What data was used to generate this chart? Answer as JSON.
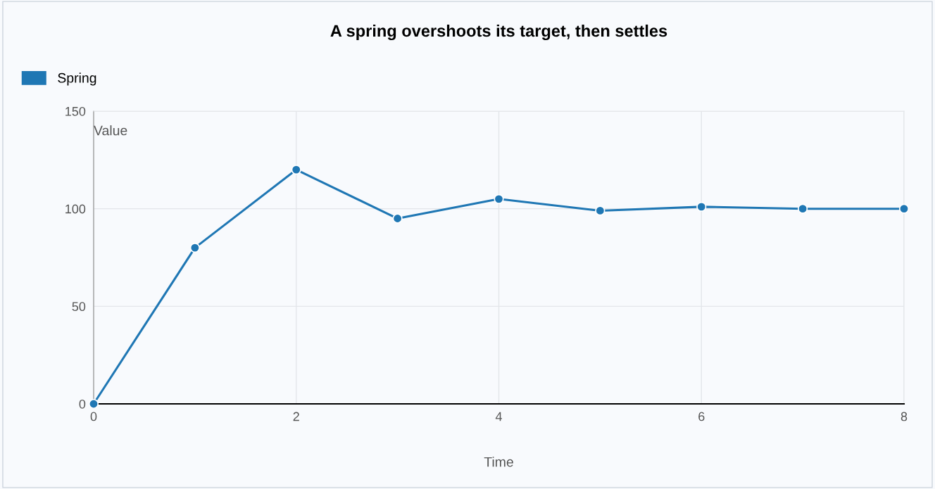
{
  "chart_data": {
    "type": "line",
    "title": "A spring overshoots its target, then settles",
    "xlabel": "Time",
    "ylabel": "Value",
    "x": [
      0,
      1,
      2,
      3,
      4,
      5,
      6,
      7,
      8
    ],
    "series": [
      {
        "name": "Spring",
        "color": "#1f77b4",
        "values": [
          0,
          80,
          120,
          95,
          105,
          99,
          101,
          100,
          100
        ]
      }
    ],
    "xlim": [
      0,
      8
    ],
    "xticks": [
      0,
      2,
      4,
      6,
      8
    ],
    "ylim": [
      0,
      150
    ],
    "yticks": [
      0,
      50,
      100,
      150
    ],
    "grid": true,
    "legend": "top left",
    "marker": "circle",
    "line_style": "solid"
  }
}
